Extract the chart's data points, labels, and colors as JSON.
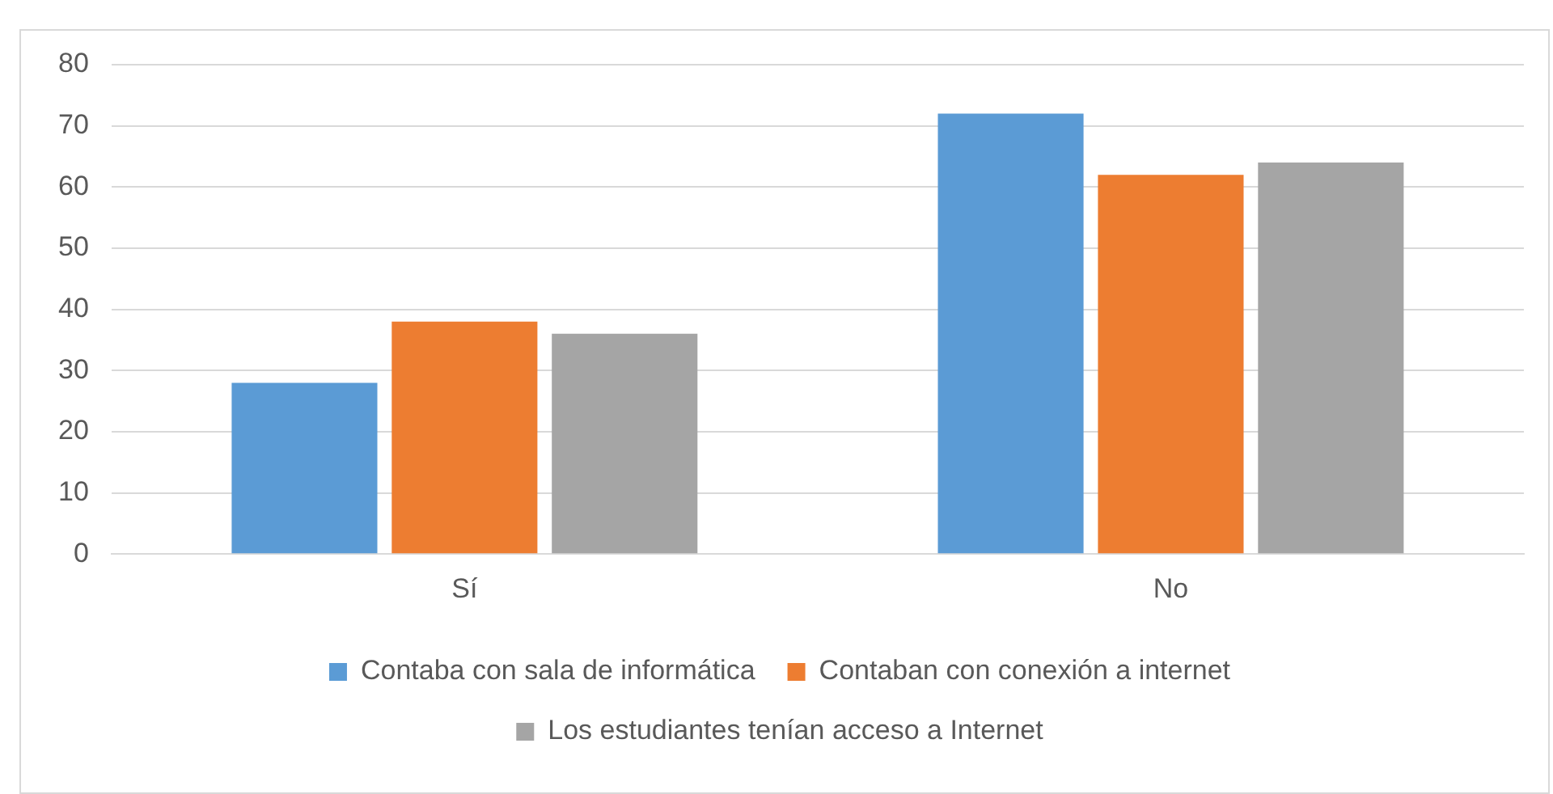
{
  "chart_data": {
    "type": "bar",
    "categories": [
      "Sí",
      "No"
    ],
    "series": [
      {
        "name": "Contaba con sala de informática",
        "color": "#5b9bd5",
        "values": [
          28,
          72
        ]
      },
      {
        "name": "Contaban con conexión a internet",
        "color": "#ed7d31",
        "values": [
          38,
          62
        ]
      },
      {
        "name": "Los estudiantes tenían acceso a Internet",
        "color": "#a5a5a5",
        "values": [
          36,
          64
        ]
      }
    ],
    "ylim": [
      0,
      80
    ],
    "yticks": [
      0,
      10,
      20,
      30,
      40,
      50,
      60,
      70,
      80
    ],
    "grid": "y",
    "legend": "bottom"
  }
}
